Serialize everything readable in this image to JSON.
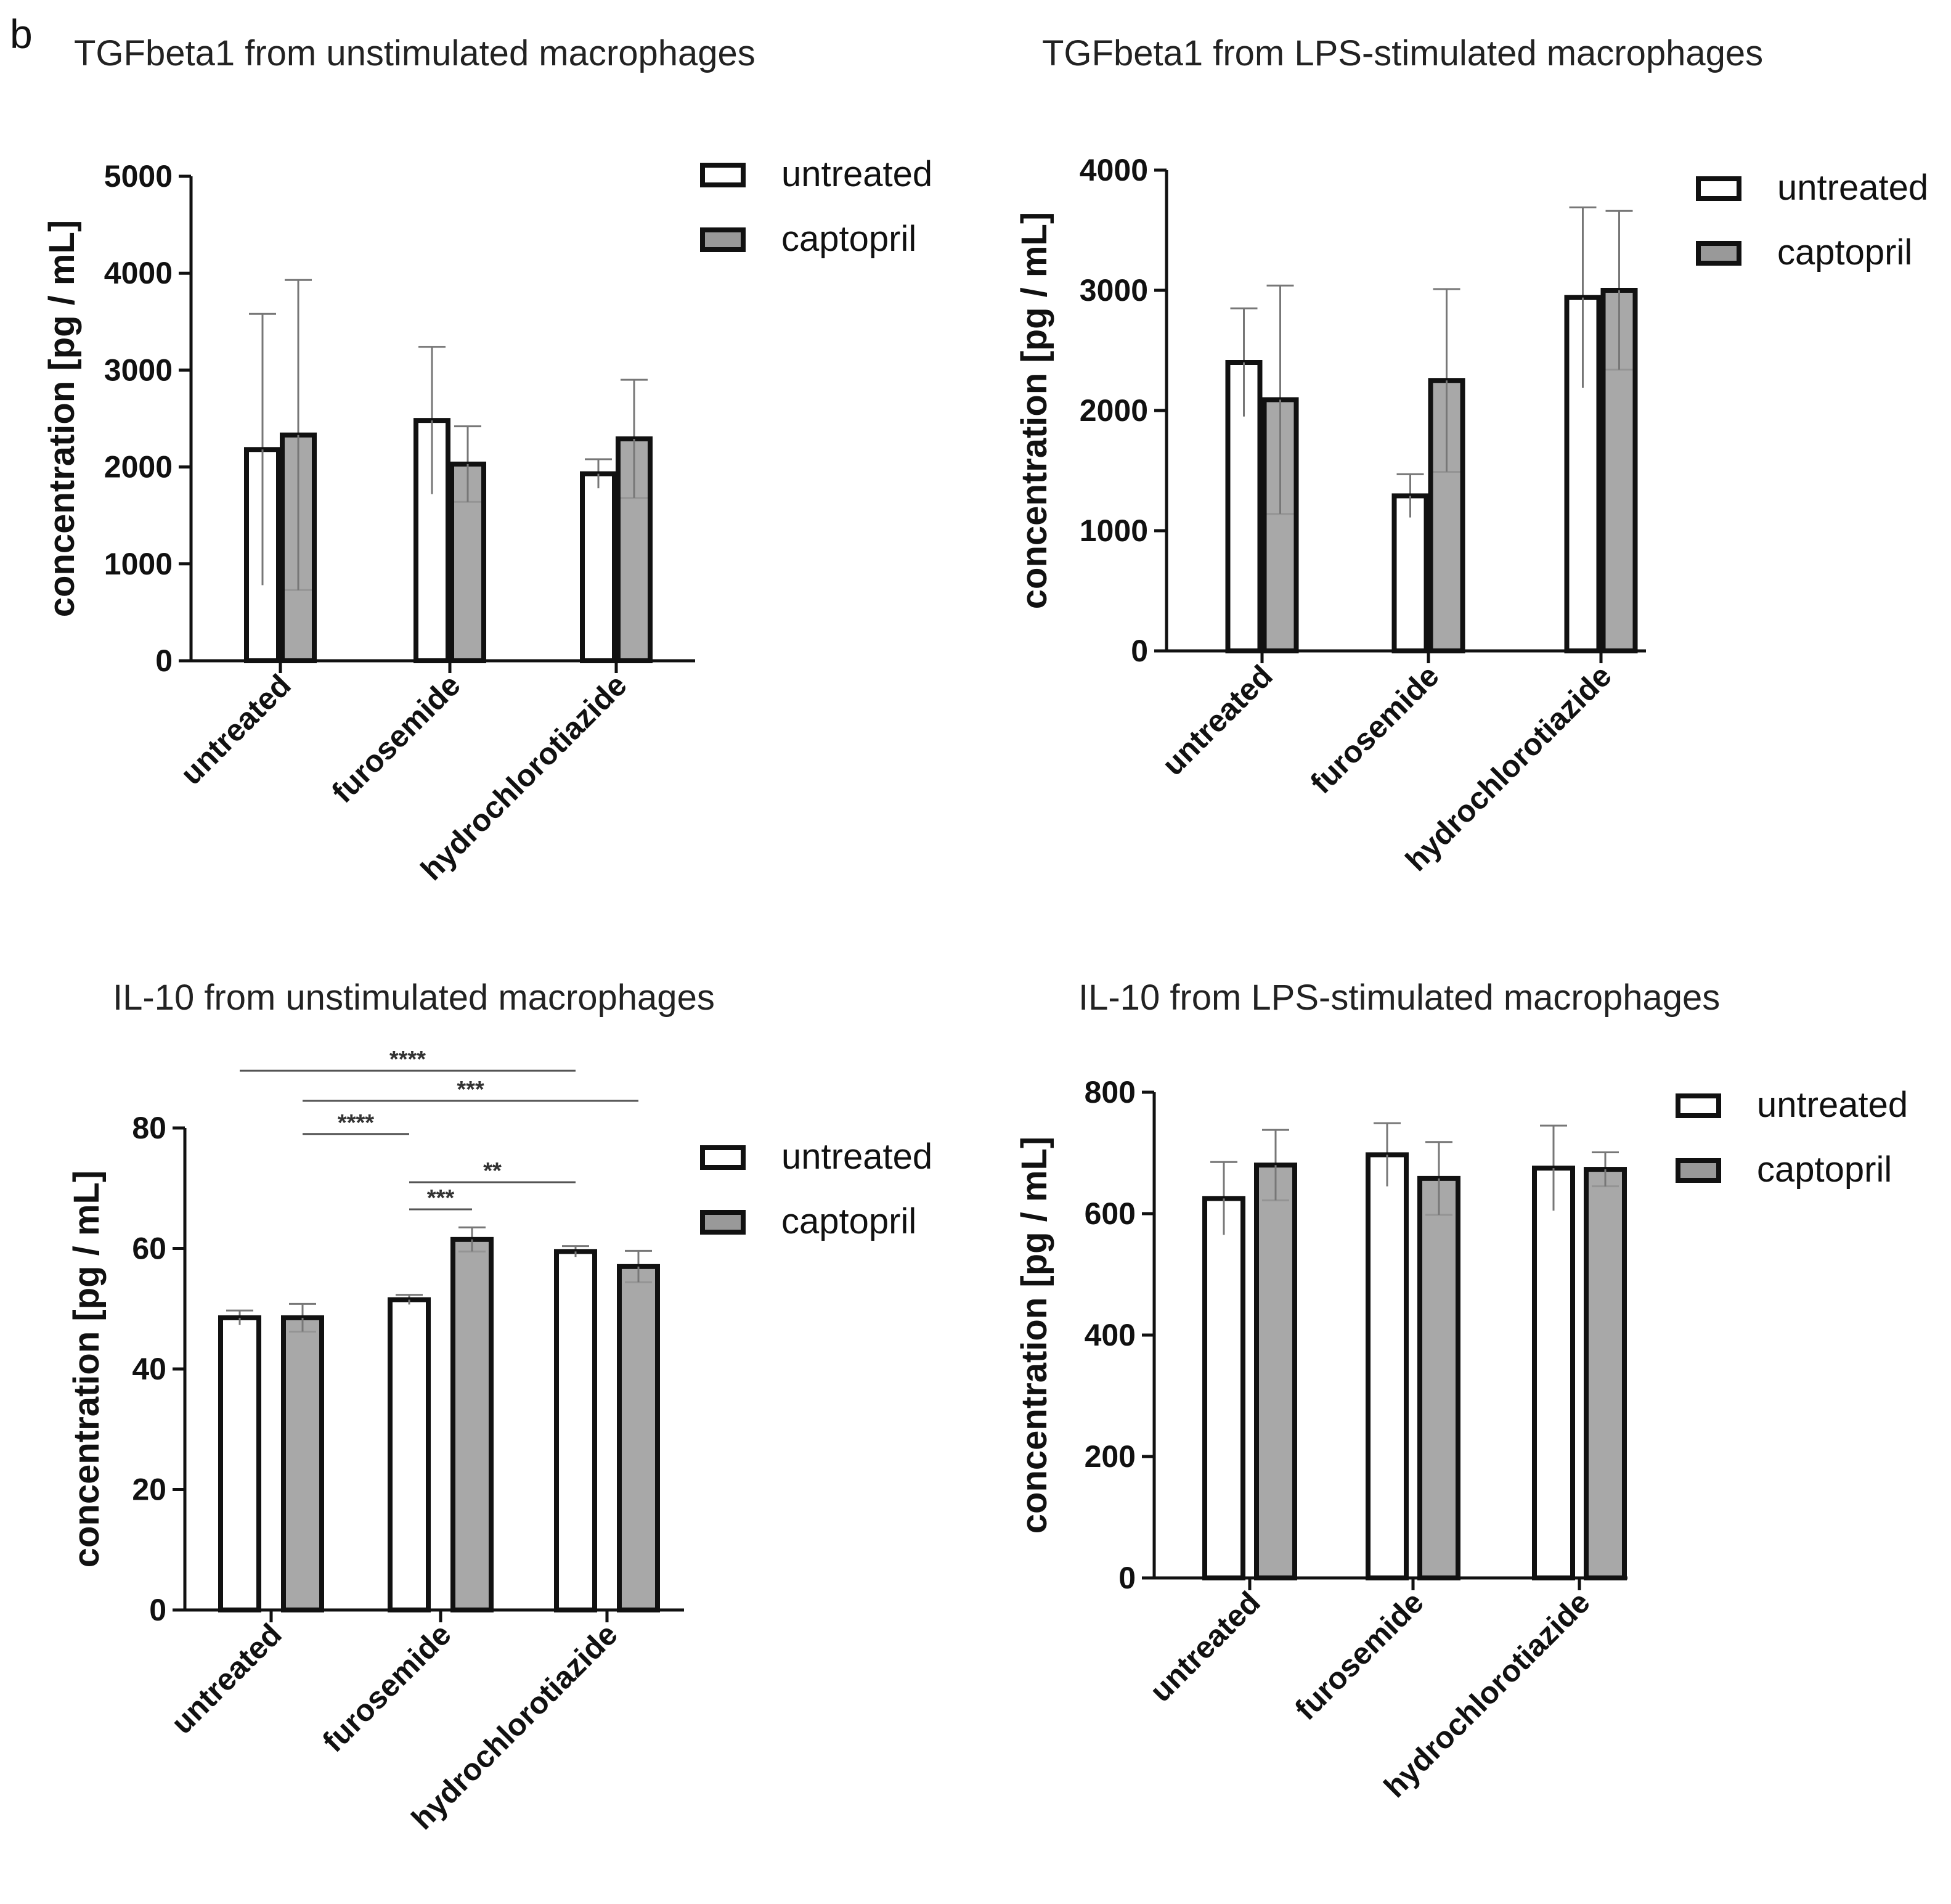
{
  "panel_label": "b",
  "colors": {
    "untreated": "#ffffff",
    "captopril": "#999999",
    "stroke": "#111111",
    "error": "#777777",
    "sig": "#555555"
  },
  "chart_data": [
    {
      "type": "bar",
      "title": "TGFbeta1 from unstimulated macrophages",
      "ylabel": "concentration [pg / mL]",
      "xlabel": "",
      "ylim": [
        0,
        5000
      ],
      "yticks": [
        0,
        1000,
        2000,
        3000,
        4000,
        5000
      ],
      "categories": [
        "untreated",
        "furosemide",
        "hydrochlorotiazide"
      ],
      "series": [
        {
          "name": "untreated",
          "values": [
            2180,
            2480,
            1930
          ],
          "errors": [
            1400,
            760,
            150
          ]
        },
        {
          "name": "captopril",
          "values": [
            2330,
            2030,
            2290
          ],
          "errors": [
            1600,
            390,
            610
          ]
        }
      ],
      "legend": [
        "untreated",
        "captopril"
      ],
      "significance": []
    },
    {
      "type": "bar",
      "title": "TGFbeta1 from LPS-stimulated macrophages",
      "ylabel": "concentration [pg / mL]",
      "xlabel": "",
      "ylim": [
        0,
        4000
      ],
      "yticks": [
        0,
        1000,
        2000,
        3000,
        4000
      ],
      "categories": [
        "untreated",
        "furosemide",
        "hydrochlorotiazide"
      ],
      "series": [
        {
          "name": "untreated",
          "values": [
            2400,
            1290,
            2940
          ],
          "errors": [
            450,
            180,
            750
          ]
        },
        {
          "name": "captopril",
          "values": [
            2090,
            2250,
            3000
          ],
          "errors": [
            950,
            760,
            660
          ]
        }
      ],
      "legend": [
        "untreated",
        "captopril"
      ],
      "significance": []
    },
    {
      "type": "bar",
      "title": "IL-10 from unstimulated macrophages",
      "ylabel": "concentration [pg / mL]",
      "xlabel": "",
      "ylim": [
        0,
        80
      ],
      "yticks": [
        0,
        20,
        40,
        60,
        80
      ],
      "categories": [
        "untreated",
        "furosemide",
        "hydrochlorotiazide"
      ],
      "series": [
        {
          "name": "untreated",
          "values": [
            48.5,
            51.5,
            59.5
          ],
          "errors": [
            1.2,
            0.8,
            0.9
          ]
        },
        {
          "name": "captopril",
          "values": [
            48.5,
            61.5,
            57.0
          ],
          "errors": [
            2.3,
            2.0,
            2.6
          ]
        }
      ],
      "legend": [
        "untreated",
        "captopril"
      ],
      "significance": [
        {
          "label": "****",
          "from": [
            0,
            0
          ],
          "to": [
            2,
            0
          ],
          "y": 89.5
        },
        {
          "label": "***",
          "from": [
            0,
            1
          ],
          "to": [
            2,
            1
          ],
          "y": 84.5
        },
        {
          "label": "****",
          "from": [
            0,
            1
          ],
          "to": [
            1,
            0
          ],
          "y": 79.0
        },
        {
          "label": "**",
          "from": [
            1,
            0
          ],
          "to": [
            2,
            0
          ],
          "y": 71.0
        },
        {
          "label": "***",
          "from": [
            1,
            0
          ],
          "to": [
            1,
            1
          ],
          "y": 66.5
        }
      ]
    },
    {
      "type": "bar",
      "title": "IL-10 from LPS-stimulated macrophages",
      "ylabel": "concentration [pg / mL]",
      "xlabel": "",
      "ylim": [
        0,
        800
      ],
      "yticks": [
        0,
        200,
        400,
        600,
        800
      ],
      "categories": [
        "untreated",
        "furosemide",
        "hydrochlorotiazide"
      ],
      "series": [
        {
          "name": "untreated",
          "values": [
            625,
            697,
            675
          ],
          "errors": [
            60,
            52,
            70
          ]
        },
        {
          "name": "captopril",
          "values": [
            680,
            658,
            673
          ],
          "errors": [
            58,
            60,
            28
          ]
        }
      ],
      "legend": [
        "untreated",
        "captopril"
      ],
      "significance": []
    }
  ]
}
